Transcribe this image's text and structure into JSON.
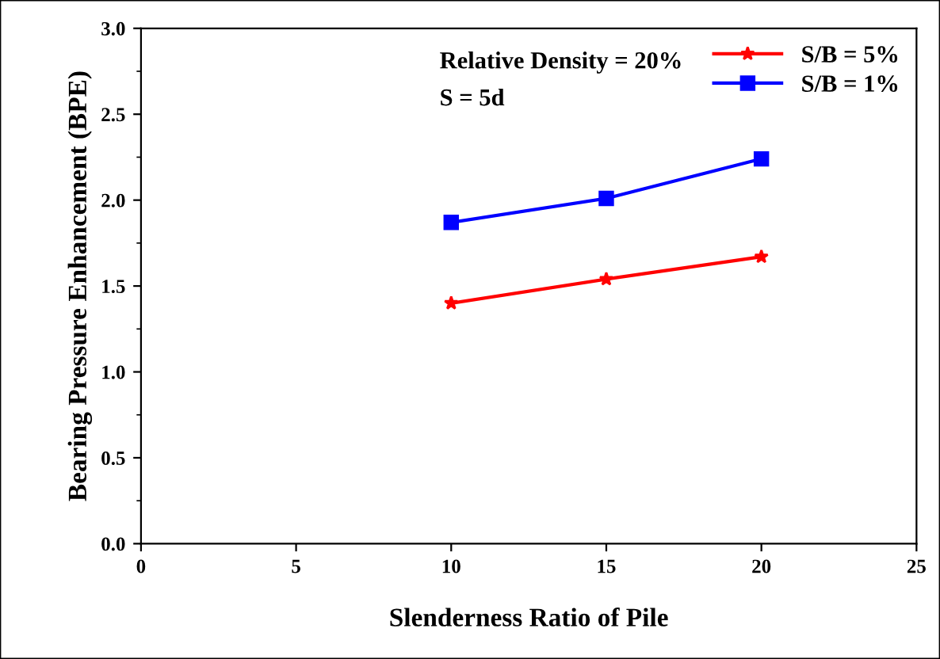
{
  "chart_data": {
    "type": "line",
    "xlabel": "Slenderness Ratio of Pile",
    "ylabel": "Bearing Pressure Enhancement (BPE)",
    "x": [
      10,
      15,
      20
    ],
    "series": [
      {
        "name": "S/B = 5%",
        "color": "#ff0000",
        "values": [
          1.4,
          1.54,
          1.67
        ],
        "marker": "star"
      },
      {
        "name": "S/B = 1%",
        "color": "#0000ff",
        "values": [
          1.87,
          2.01,
          2.24
        ],
        "marker": "square"
      }
    ],
    "annotations": [
      "Relative Density = 20%",
      "S = 5d"
    ],
    "xlim": [
      0,
      25
    ],
    "xticks": [
      0,
      5,
      10,
      15,
      20,
      25
    ],
    "ylim": [
      0,
      3
    ],
    "yticks": [
      {
        "value": 0,
        "label": "0.0"
      },
      {
        "value": 0.5,
        "label": "0.5"
      },
      {
        "value": 1,
        "label": "1.0"
      },
      {
        "value": 1.5,
        "label": "1.5"
      },
      {
        "value": 2,
        "label": "2.0"
      },
      {
        "value": 2.5,
        "label": "2.5"
      },
      {
        "value": 3,
        "label": "3.0"
      }
    ],
    "legend": "top right",
    "grid": false,
    "line_style": "solid"
  }
}
